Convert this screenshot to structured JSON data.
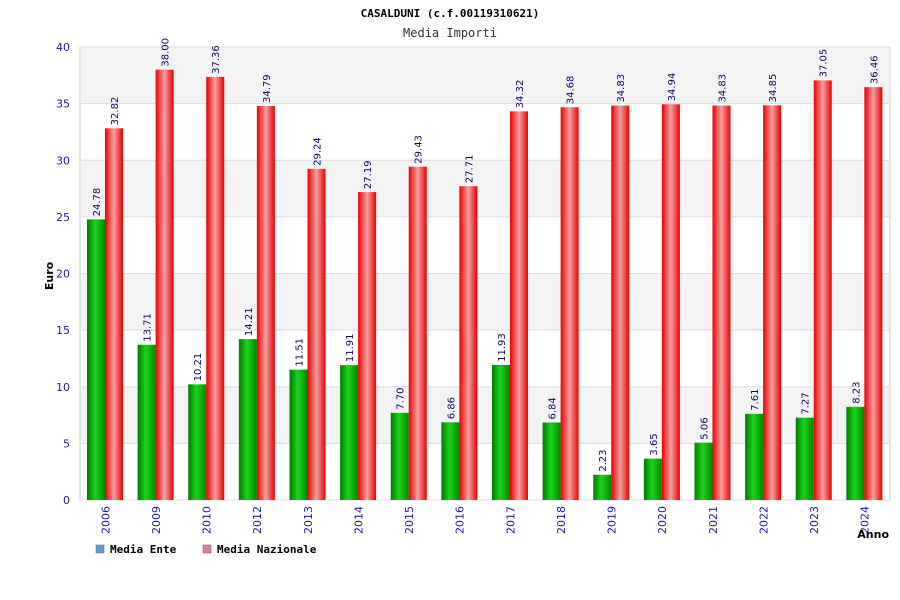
{
  "chart_data": {
    "type": "bar",
    "title": "CASALDUNI (c.f.00119310621)",
    "subtitle": "Media Importi",
    "xlabel": "Anno",
    "ylabel": "Euro",
    "ylim": [
      0,
      40
    ],
    "yticks": [
      0,
      5,
      10,
      15,
      20,
      25,
      30,
      35,
      40
    ],
    "grid": true,
    "legend_position": "bottom-left",
    "categories": [
      "2006",
      "2009",
      "2010",
      "2012",
      "2013",
      "2014",
      "2015",
      "2016",
      "2017",
      "2018",
      "2019",
      "2020",
      "2021",
      "2022",
      "2023",
      "2024"
    ],
    "series": [
      {
        "name": "Media Ente",
        "color": "#00b000",
        "legend_color": "#5b9bd5",
        "values": [
          24.78,
          13.71,
          10.21,
          14.21,
          11.51,
          11.91,
          7.7,
          6.86,
          11.93,
          6.84,
          2.23,
          3.65,
          5.06,
          7.61,
          7.27,
          8.23
        ],
        "labels": [
          "24.78",
          "13.71",
          "10.21",
          "14.21",
          "11.51",
          "11.91",
          "7.70",
          "6.86",
          "11.93",
          "6.84",
          "2.23",
          "3.65",
          "5.06",
          "7.61",
          "7.27",
          "8.23"
        ]
      },
      {
        "name": "Media Nazionale",
        "color": "#ff1a1a",
        "legend_color": "#e07aa0",
        "values": [
          32.82,
          38.0,
          37.36,
          34.79,
          29.24,
          27.19,
          29.43,
          27.71,
          34.32,
          34.68,
          34.83,
          34.94,
          34.83,
          34.85,
          37.05,
          36.46
        ],
        "labels": [
          "32.82",
          "38.00",
          "37.36",
          "34.79",
          "29.24",
          "27.19",
          "29.43",
          "27.71",
          "34.32",
          "34.68",
          "34.83",
          "34.94",
          "34.83",
          "34.85",
          "37.05",
          "36.46"
        ]
      }
    ]
  }
}
